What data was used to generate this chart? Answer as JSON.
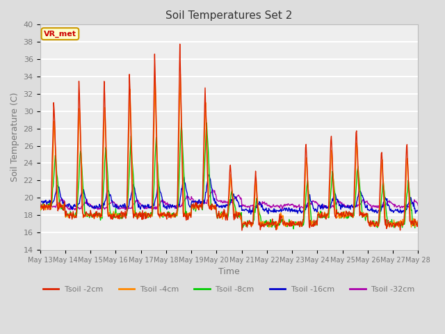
{
  "title": "Soil Temperatures Set 2",
  "xlabel": "Time",
  "ylabel": "Soil Temperature (C)",
  "ylim": [
    14,
    40
  ],
  "yticks": [
    14,
    16,
    18,
    20,
    22,
    24,
    26,
    28,
    30,
    32,
    34,
    36,
    38,
    40
  ],
  "annotation_text": "VR_met",
  "annotation_color": "#cc0000",
  "annotation_bg": "#ffffcc",
  "annotation_border": "#cc9900",
  "series_colors": [
    "#dd2200",
    "#ff8800",
    "#00cc00",
    "#0000cc",
    "#aa00aa"
  ],
  "series_labels": [
    "Tsoil -2cm",
    "Tsoil -4cm",
    "Tsoil -8cm",
    "Tsoil -16cm",
    "Tsoil -32cm"
  ],
  "background_color": "#dddddd",
  "plot_bg_color": "#eeeeee",
  "grid_color": "#ffffff",
  "title_color": "#333333",
  "tick_label_color": "#777777",
  "x_tick_labels": [
    "May 13",
    "May 14",
    "May 15",
    "May 16",
    "May 17",
    "May 18",
    "May 19",
    "May 20",
    "May 21",
    "May 22",
    "May 23",
    "May 24",
    "May 25",
    "May 26",
    "May 27",
    "May 28"
  ]
}
